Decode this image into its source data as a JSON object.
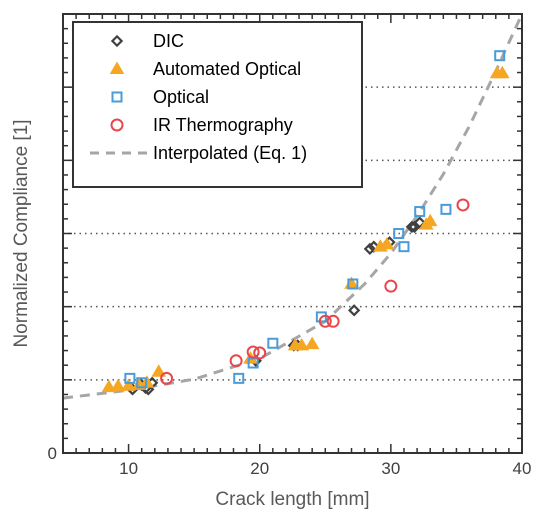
{
  "chart_data": {
    "type": "scatter",
    "xlabel": "Crack length [mm]",
    "ylabel": "Normalized Compliance [1]",
    "xlim": [
      5,
      40
    ],
    "ylim": [
      0,
      1
    ],
    "x_ticks": [
      10,
      20,
      30,
      40
    ],
    "y_ticks": [
      0
    ],
    "y_gridlines": [
      0.1667,
      0.3333,
      0.5,
      0.6667,
      0.8333
    ],
    "grid": "dotted horizontal lines",
    "legend_position": "top-left",
    "series": [
      {
        "name": "DIC",
        "marker": "diamond",
        "color": "#404040",
        "points": [
          [
            10.3,
            0.145
          ],
          [
            11,
            0.155
          ],
          [
            11.3,
            0.148
          ],
          [
            11.5,
            0.145
          ],
          [
            11.8,
            0.16
          ],
          [
            19.7,
            0.21
          ],
          [
            22.6,
            0.245
          ],
          [
            22.9,
            0.245
          ],
          [
            27.2,
            0.325
          ],
          [
            28.4,
            0.465
          ],
          [
            28.7,
            0.47
          ],
          [
            29.9,
            0.48
          ],
          [
            31.6,
            0.515
          ],
          [
            31.8,
            0.515
          ],
          [
            32.2,
            0.525
          ]
        ]
      },
      {
        "name": "Automated Optical",
        "marker": "triangle",
        "color": "#f5a623",
        "points": [
          [
            8.5,
            0.15
          ],
          [
            9.2,
            0.152
          ],
          [
            10,
            0.153
          ],
          [
            10.8,
            0.155
          ],
          [
            11.4,
            0.16
          ],
          [
            12.3,
            0.185
          ],
          [
            19.3,
            0.215
          ],
          [
            22.7,
            0.245
          ],
          [
            23.2,
            0.245
          ],
          [
            24,
            0.248
          ],
          [
            27,
            0.385
          ],
          [
            29.2,
            0.47
          ],
          [
            29.7,
            0.475
          ],
          [
            32.7,
            0.52
          ],
          [
            33,
            0.528
          ],
          [
            38.1,
            0.865
          ],
          [
            38.5,
            0.865
          ]
        ]
      },
      {
        "name": "Optical",
        "marker": "square",
        "color": "#4a9bd9",
        "points": [
          [
            10.1,
            0.17
          ],
          [
            11,
            0.16
          ],
          [
            18.4,
            0.17
          ],
          [
            19.5,
            0.205
          ],
          [
            21,
            0.25
          ],
          [
            24.7,
            0.31
          ],
          [
            27.1,
            0.385
          ],
          [
            30.6,
            0.5
          ],
          [
            31,
            0.47
          ],
          [
            32.2,
            0.55
          ],
          [
            34.2,
            0.555
          ],
          [
            38.3,
            0.905
          ]
        ]
      },
      {
        "name": "IR Thermography",
        "marker": "circle",
        "color": "#e8474b",
        "points": [
          [
            12.9,
            0.17
          ],
          [
            18.2,
            0.21
          ],
          [
            19.5,
            0.23
          ],
          [
            20,
            0.228
          ],
          [
            25,
            0.3
          ],
          [
            25.6,
            0.3
          ],
          [
            30,
            0.38
          ],
          [
            35.5,
            0.565
          ]
        ]
      }
    ],
    "fit_line": {
      "name": "Interpolated (Eq. 1)",
      "style": "dashed",
      "color": "#a6a6a6",
      "points": [
        [
          5,
          0.125
        ],
        [
          10,
          0.143
        ],
        [
          15,
          0.168
        ],
        [
          20,
          0.215
        ],
        [
          25,
          0.3
        ],
        [
          28,
          0.385
        ],
        [
          30,
          0.455
        ],
        [
          32,
          0.54
        ],
        [
          34,
          0.635
        ],
        [
          36,
          0.745
        ],
        [
          38,
          0.87
        ],
        [
          40,
          1.0
        ]
      ]
    }
  }
}
